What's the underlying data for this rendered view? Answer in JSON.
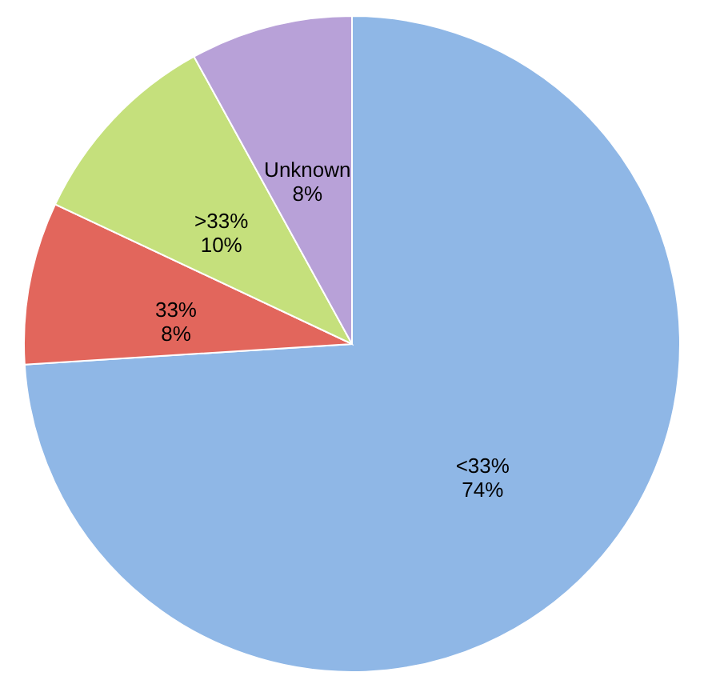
{
  "chart_data": {
    "type": "pie",
    "categories": [
      "<33%",
      "33%",
      ">33%",
      "Unknown"
    ],
    "values": [
      74,
      8,
      10,
      8
    ],
    "value_labels": [
      "74%",
      "8%",
      "10%",
      "8%"
    ],
    "colors": [
      "#8fb7e6",
      "#e2665c",
      "#c5e07c",
      "#b8a1d8"
    ]
  }
}
